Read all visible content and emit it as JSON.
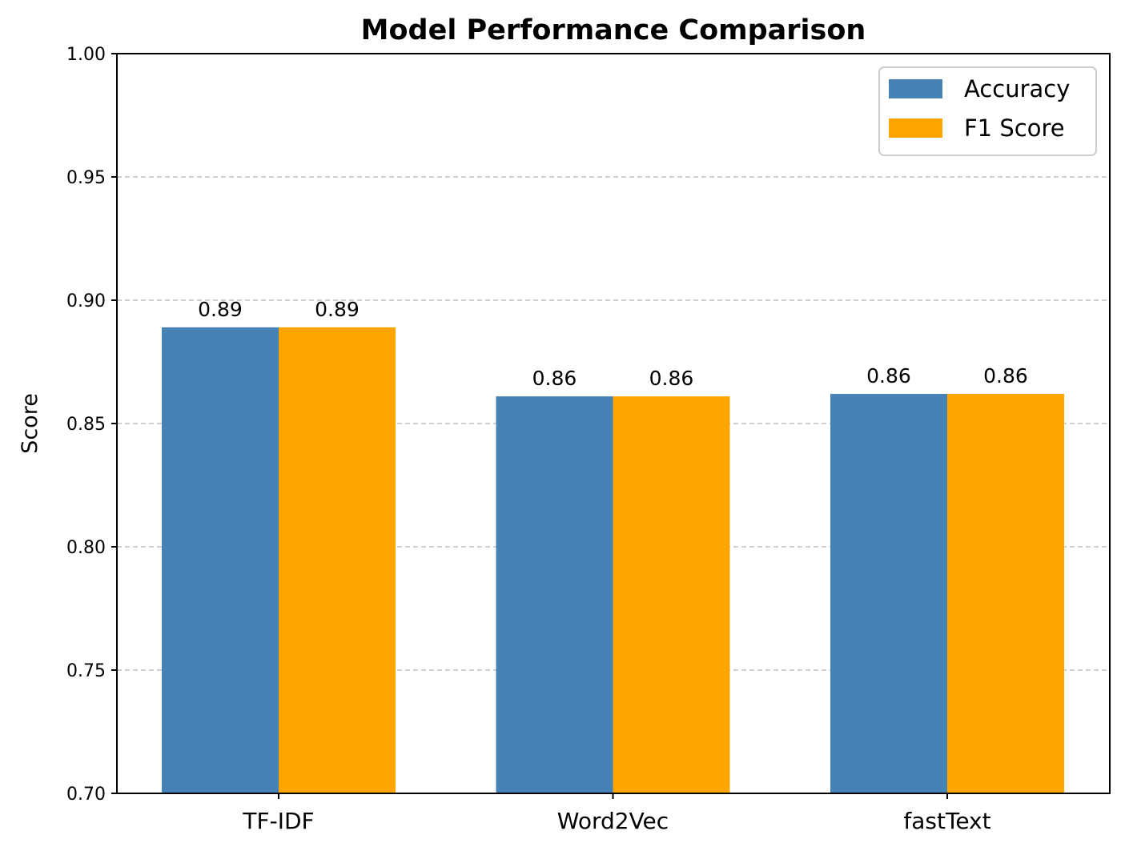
{
  "chart_data": {
    "type": "bar",
    "title": "Model Performance Comparison",
    "xlabel": "",
    "ylabel": "Score",
    "categories": [
      "TF-IDF",
      "Word2Vec",
      "fastText"
    ],
    "series": [
      {
        "name": "Accuracy",
        "color": "#4682b4",
        "values": [
          0.889,
          0.861,
          0.862
        ],
        "labels": [
          "0.89",
          "0.86",
          "0.86"
        ]
      },
      {
        "name": "F1 Score",
        "color": "#ffa500",
        "values": [
          0.889,
          0.861,
          0.862
        ],
        "labels": [
          "0.89",
          "0.86",
          "0.86"
        ]
      }
    ],
    "ylim": [
      0.7,
      1.0
    ],
    "yticks": [
      0.7,
      0.75,
      0.8,
      0.85,
      0.9,
      0.95,
      1.0
    ],
    "ytick_labels": [
      "0.70",
      "0.75",
      "0.80",
      "0.85",
      "0.90",
      "0.95",
      "1.00"
    ],
    "grid": "y-dashed",
    "legend_position": "top-right"
  }
}
